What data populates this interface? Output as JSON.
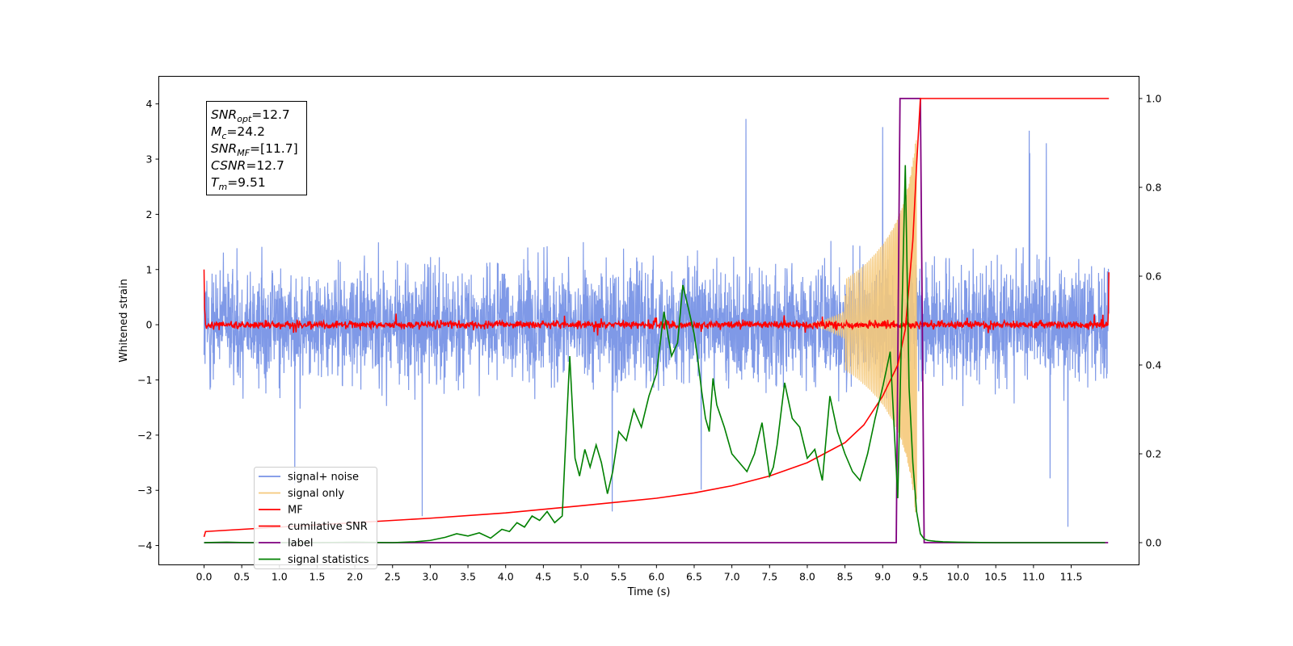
{
  "chart_data": {
    "type": "line",
    "xlabel": "Time (s)",
    "ylabel": "Whitened strain",
    "xlim": [
      -0.6,
      12.4
    ],
    "ylim_left": [
      -4.35,
      4.5
    ],
    "ylim_right": [
      -0.05,
      1.05
    ],
    "x_ticks": [
      0.0,
      0.5,
      1.0,
      1.5,
      2.0,
      2.5,
      3.0,
      3.5,
      4.0,
      4.5,
      5.0,
      5.5,
      6.0,
      6.5,
      7.0,
      7.5,
      8.0,
      8.5,
      9.0,
      9.5,
      10.0,
      10.5,
      11.0,
      11.5
    ],
    "x_tick_labels": [
      "0.0",
      "0.5",
      "1.0",
      "1.5",
      "2.0",
      "2.5",
      "3.0",
      "3.5",
      "4.0",
      "4.5",
      "5.0",
      "5.5",
      "6.0",
      "6.5",
      "7.0",
      "7.5",
      "8.0",
      "8.5",
      "9.0",
      "9.5",
      "10.0",
      "10.5",
      "11.0",
      "11.5"
    ],
    "y_left_ticks": [
      -4,
      -3,
      -2,
      -1,
      0,
      1,
      2,
      3,
      4
    ],
    "y_left_tick_labels": [
      "−4",
      "−3",
      "−2",
      "−1",
      "0",
      "1",
      "2",
      "3",
      "4"
    ],
    "y_right_ticks": [
      0.0,
      0.2,
      0.4,
      0.6,
      0.8,
      1.0
    ],
    "y_right_tick_labels": [
      "0.0",
      "0.2",
      "0.4",
      "0.6",
      "0.8",
      "1.0"
    ],
    "grid": false,
    "legend_position": "lower-left",
    "annotation": {
      "lines": [
        {
          "sym": "SNR",
          "sub": "opt",
          "val": "=12.7"
        },
        {
          "sym": "M",
          "sub": "c",
          "val": "=24.2"
        },
        {
          "sym": "SNR",
          "sub": "MF",
          "val": "=[11.7]"
        },
        {
          "sym": "CSNR",
          "sub": "",
          "val": "=12.7"
        },
        {
          "sym": "T",
          "sub": "m",
          "val": "=9.51"
        }
      ]
    },
    "series": [
      {
        "name": "signal+ noise",
        "axis": "left",
        "color": "#7893e6",
        "description": "white noise amplitude approx ±2.5, spikes to ±4.2, x 0 to 12"
      },
      {
        "name": "signal only",
        "axis": "left",
        "color": "#f5c97a",
        "description": "chirp growing from 8.5 s, peak amplitude ~3.5 at 9.45 s, then zero"
      },
      {
        "name": "MF",
        "axis": "left",
        "color": "#ff0000",
        "description": "matched filter output near 0 (±0.2), starts at 1.0 at t=0, ends 0.95 at t=12"
      },
      {
        "name": "cumilative SNR",
        "axis": "right",
        "color": "#ff0000",
        "x": [
          0.0,
          0.02,
          1,
          2,
          3,
          4,
          5,
          6,
          6.5,
          7,
          7.5,
          8,
          8.5,
          8.75,
          9,
          9.2,
          9.3,
          9.4,
          9.45,
          9.5
        ],
        "values": [
          0.013,
          0.025,
          0.035,
          0.045,
          0.055,
          0.067,
          0.083,
          0.1,
          0.112,
          0.128,
          0.15,
          0.18,
          0.225,
          0.265,
          0.33,
          0.4,
          0.48,
          0.68,
          0.85,
          1.0
        ],
        "after": {
          "x": [
            9.5,
            12.0
          ],
          "value": 1.0
        }
      },
      {
        "name": "label",
        "axis": "right",
        "color": "#800080",
        "x": [
          0.0,
          9.18,
          9.23,
          9.5,
          9.55,
          11.99
        ],
        "values": [
          0.0,
          0.0,
          1.0,
          1.0,
          0.0,
          0.0
        ]
      },
      {
        "name": "signal statistics",
        "axis": "right",
        "color": "#008000",
        "x": [
          0.0,
          0.3,
          0.6,
          1.0,
          1.5,
          2.0,
          2.5,
          2.8,
          3.0,
          3.2,
          3.35,
          3.5,
          3.65,
          3.8,
          3.95,
          4.05,
          4.15,
          4.25,
          4.35,
          4.45,
          4.55,
          4.65,
          4.75,
          4.85,
          4.92,
          4.98,
          5.05,
          5.12,
          5.2,
          5.27,
          5.35,
          5.42,
          5.5,
          5.6,
          5.7,
          5.8,
          5.9,
          6.0,
          6.1,
          6.2,
          6.28,
          6.35,
          6.42,
          6.5,
          6.55,
          6.6,
          6.65,
          6.7,
          6.75,
          6.8,
          6.9,
          7.0,
          7.1,
          7.2,
          7.3,
          7.4,
          7.5,
          7.55,
          7.6,
          7.7,
          7.8,
          7.9,
          8.0,
          8.1,
          8.2,
          8.3,
          8.4,
          8.5,
          8.6,
          8.7,
          8.8,
          8.9,
          9.0,
          9.1,
          9.2,
          9.3,
          9.35,
          9.4,
          9.45,
          9.5,
          9.55,
          9.6,
          9.7,
          9.8,
          10.0,
          10.5,
          11.0,
          11.5,
          11.95
        ],
        "values": [
          0.0,
          0.001,
          0.0,
          0.0,
          0.0,
          0.001,
          0.0,
          0.002,
          0.005,
          0.012,
          0.02,
          0.015,
          0.022,
          0.01,
          0.03,
          0.025,
          0.045,
          0.035,
          0.06,
          0.05,
          0.07,
          0.045,
          0.06,
          0.42,
          0.19,
          0.15,
          0.21,
          0.17,
          0.22,
          0.18,
          0.11,
          0.16,
          0.25,
          0.23,
          0.3,
          0.26,
          0.33,
          0.38,
          0.52,
          0.42,
          0.45,
          0.58,
          0.53,
          0.47,
          0.41,
          0.34,
          0.28,
          0.25,
          0.37,
          0.31,
          0.26,
          0.2,
          0.18,
          0.16,
          0.2,
          0.27,
          0.15,
          0.17,
          0.22,
          0.36,
          0.28,
          0.26,
          0.19,
          0.21,
          0.14,
          0.33,
          0.25,
          0.2,
          0.16,
          0.14,
          0.2,
          0.28,
          0.35,
          0.43,
          0.1,
          0.85,
          0.35,
          0.18,
          0.07,
          0.02,
          0.008,
          0.005,
          0.003,
          0.002,
          0.001,
          0.0,
          0.0,
          0.0,
          0.0
        ]
      }
    ],
    "legend": [
      "signal+ noise",
      "signal only",
      "MF",
      "cumilative SNR",
      "label",
      "signal statistics"
    ]
  }
}
